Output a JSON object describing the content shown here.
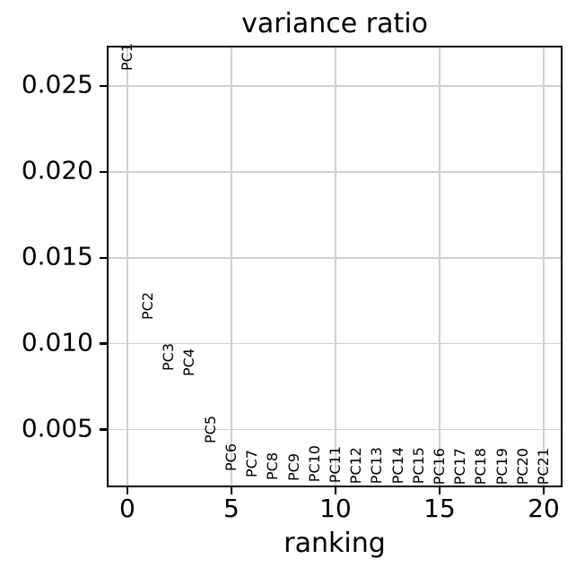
{
  "chart_data": {
    "type": "scatter",
    "marker_style": "text-annotations-rotated-90",
    "title": "variance ratio",
    "xlabel": "ranking",
    "ylabel": "",
    "grid": true,
    "legend": "none",
    "xlim": [
      -0.9,
      20.82
    ],
    "ylim": [
      0.00175,
      0.02724
    ],
    "xticks": [
      0,
      5,
      10,
      15,
      20
    ],
    "xtick_labels": [
      "0",
      "5",
      "10",
      "15",
      "20"
    ],
    "yticks": [
      0.005,
      0.01,
      0.015,
      0.02,
      0.025
    ],
    "ytick_labels": [
      "0.005",
      "0.010",
      "0.015",
      "0.020",
      "0.025"
    ],
    "points": [
      {
        "label": "PC1",
        "x": 0,
        "y": 0.0259
      },
      {
        "label": "PC2",
        "x": 1,
        "y": 0.0114
      },
      {
        "label": "PC3",
        "x": 2,
        "y": 0.0084
      },
      {
        "label": "PC4",
        "x": 3,
        "y": 0.0081
      },
      {
        "label": "PC5",
        "x": 4,
        "y": 0.0042
      },
      {
        "label": "PC6",
        "x": 5,
        "y": 0.0026
      },
      {
        "label": "PC7",
        "x": 6,
        "y": 0.0022
      },
      {
        "label": "PC8",
        "x": 7,
        "y": 0.00205
      },
      {
        "label": "PC9",
        "x": 8,
        "y": 0.002
      },
      {
        "label": "PC10",
        "x": 9,
        "y": 0.00193
      },
      {
        "label": "PC11",
        "x": 10,
        "y": 0.00188
      },
      {
        "label": "PC12",
        "x": 11,
        "y": 0.00186
      },
      {
        "label": "PC13",
        "x": 12,
        "y": 0.00184
      },
      {
        "label": "PC14",
        "x": 13,
        "y": 0.00183
      },
      {
        "label": "PC15",
        "x": 14,
        "y": 0.00182
      },
      {
        "label": "PC16",
        "x": 15,
        "y": 0.00181
      },
      {
        "label": "PC17",
        "x": 16,
        "y": 0.0018
      },
      {
        "label": "PC18",
        "x": 17,
        "y": 0.0018
      },
      {
        "label": "PC19",
        "x": 18,
        "y": 0.00179
      },
      {
        "label": "PC20",
        "x": 19,
        "y": 0.00179
      },
      {
        "label": "PC21",
        "x": 20,
        "y": 0.00178
      }
    ],
    "colors": {
      "background": "#ffffff",
      "spine": "#000000",
      "grid": "#d0d0d0",
      "text": "#000000"
    }
  }
}
